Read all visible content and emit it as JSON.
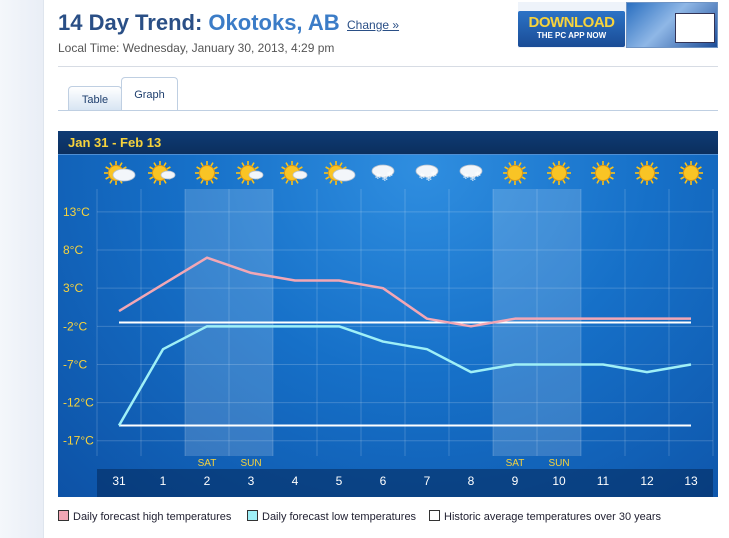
{
  "header": {
    "title_prefix": "14 Day Trend:",
    "city": "Okotoks, AB",
    "change_label": "Change »",
    "local_time": "Local Time: Wednesday, January 30, 2013, 4:29 pm"
  },
  "ad": {
    "headline": "DOWNLOAD",
    "subline": "THE PC APP NOW"
  },
  "tabs": [
    {
      "label": "Table",
      "active": false
    },
    {
      "label": "Graph",
      "active": true
    }
  ],
  "chart_data": {
    "type": "line",
    "date_range": "Jan 31  -  Feb  13",
    "x": [
      "31",
      "1",
      "2",
      "3",
      "4",
      "5",
      "6",
      "7",
      "8",
      "9",
      "10",
      "11",
      "12",
      "13"
    ],
    "weekend_labels": [
      "",
      "",
      "SAT",
      "SUN",
      "",
      "",
      "",
      "",
      "",
      "SAT",
      "SUN",
      "",
      "",
      ""
    ],
    "conditions": [
      "partly-cloudy-icon",
      "partly-sunny-icon",
      "sunny-icon",
      "partly-sunny-icon",
      "partly-sunny-icon",
      "partly-cloudy-icon",
      "snow-icon",
      "snow-icon",
      "snow-icon",
      "sunny-icon",
      "sunny-icon",
      "sunny-icon",
      "sunny-icon",
      "sunny-icon"
    ],
    "ytick_labels": [
      "13°C",
      "8°C",
      "3°C",
      "-2°C",
      "-7°C",
      "-12°C",
      "-17°C"
    ],
    "yticks": [
      13,
      8,
      3,
      -2,
      -7,
      -12,
      -17
    ],
    "ylim": [
      -19,
      16
    ],
    "series": [
      {
        "name": "Daily forecast high temperatures",
        "color": "#f2a7b5",
        "values": [
          0,
          3.5,
          7,
          5,
          4,
          4,
          3,
          -1,
          -2,
          -1,
          -1,
          -1,
          -1,
          -1
        ]
      },
      {
        "name": "Daily forecast low temperatures",
        "color": "#9ff0f7",
        "values": [
          -15,
          -5,
          -2,
          -2,
          -2,
          -2,
          -4,
          -5,
          -8,
          -7,
          -7,
          -7,
          -8,
          -7
        ]
      }
    ],
    "historic": {
      "name": "Historic average temperatures over 30 years",
      "color": "#ffffff",
      "high": -1.5,
      "low": -15
    },
    "legend_position": "bottom"
  }
}
